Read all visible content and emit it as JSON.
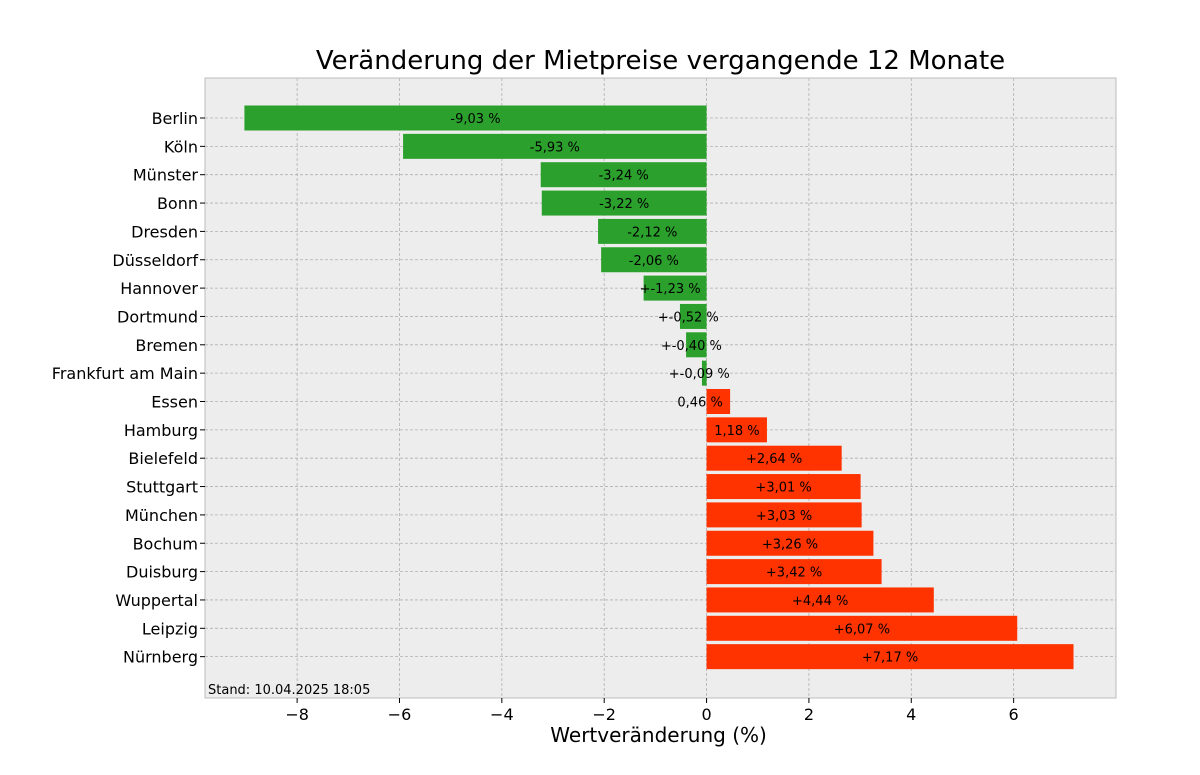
{
  "chart_data": {
    "type": "bar",
    "orientation": "horizontal",
    "title": "Veränderung der Mietpreise vergangende 12 Monate",
    "xlabel": "Wertveränderung (%)",
    "ylabel": "",
    "categories": [
      "Berlin",
      "Köln",
      "Münster",
      "Bonn",
      "Dresden",
      "Düsseldorf",
      "Hannover",
      "Dortmund",
      "Bremen",
      "Frankfurt am Main",
      "Essen",
      "Hamburg",
      "Bielefeld",
      "Stuttgart",
      "München",
      "Bochum",
      "Duisburg",
      "Wuppertal",
      "Leipzig",
      "Nürnberg"
    ],
    "values": [
      -9.03,
      -5.93,
      -3.24,
      -3.22,
      -2.12,
      -2.06,
      -1.23,
      -0.52,
      -0.4,
      -0.09,
      0.46,
      1.18,
      2.64,
      3.01,
      3.03,
      3.26,
      3.42,
      4.44,
      6.07,
      7.17
    ],
    "data_labels": [
      "-9,03 %",
      "-5,93 %",
      "-3,24 %",
      "-3,22 %",
      "-2,12 %",
      "-2,06 %",
      "+-1,23 %",
      "+-0,52 %",
      "+-0,40 %",
      "+-0,09 %",
      "0,46 %",
      "1,18 %",
      "+2,64 %",
      "+3,01 %",
      "+3,03 %",
      "+3,26 %",
      "+3,42 %",
      "+4,44 %",
      "+6,07 %",
      "+7,17 %"
    ],
    "xlim": [
      -9.8,
      8.0
    ],
    "xticks": [
      -8,
      -6,
      -4,
      -2,
      0,
      2,
      4,
      6
    ],
    "xtick_labels": [
      "−8",
      "−6",
      "−4",
      "−2",
      "0",
      "2",
      "4",
      "6"
    ],
    "grid": true,
    "colors": {
      "negative": "#2ca02c",
      "positive": "#ff3300",
      "background": "#ededed",
      "grid": "#b0b0b0",
      "frame": "#bcbcbc"
    },
    "annotation": "Stand: 10.04.2025 18:05"
  }
}
